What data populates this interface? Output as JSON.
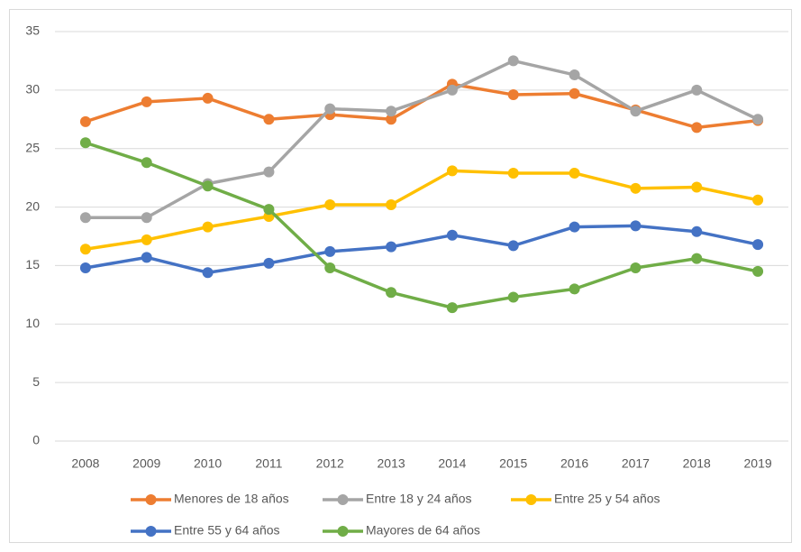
{
  "chart_data": {
    "type": "line",
    "categories": [
      "2008",
      "2009",
      "2010",
      "2011",
      "2012",
      "2013",
      "2014",
      "2015",
      "2016",
      "2017",
      "2018",
      "2019"
    ],
    "series": [
      {
        "name": "Menores de 18 años",
        "color": "#ed7d31",
        "values": [
          27.3,
          29.0,
          29.3,
          27.5,
          27.9,
          27.5,
          30.5,
          29.6,
          29.7,
          28.3,
          26.8,
          27.4
        ]
      },
      {
        "name": "Entre 18 y 24 años",
        "color": "#a5a5a5",
        "values": [
          19.1,
          19.1,
          22.0,
          23.0,
          28.4,
          28.2,
          30.0,
          32.5,
          31.3,
          28.2,
          30.0,
          27.5
        ]
      },
      {
        "name": "Entre 25 y 54 años",
        "color": "#ffc000",
        "values": [
          16.4,
          17.2,
          18.3,
          19.2,
          20.2,
          20.2,
          23.1,
          22.9,
          22.9,
          21.6,
          21.7,
          20.6
        ]
      },
      {
        "name": "Entre 55 y 64 años",
        "color": "#4472c4",
        "values": [
          14.8,
          15.7,
          14.4,
          15.2,
          16.2,
          16.6,
          17.6,
          16.7,
          18.3,
          18.4,
          17.9,
          16.8
        ]
      },
      {
        "name": "Mayores de 64 años",
        "color": "#70ad47",
        "values": [
          25.5,
          23.8,
          21.8,
          19.8,
          14.8,
          12.7,
          11.4,
          12.3,
          13.0,
          14.8,
          15.6,
          14.5
        ]
      }
    ],
    "ylim": [
      0,
      35
    ],
    "yticks": [
      0,
      5,
      10,
      15,
      20,
      25,
      30,
      35
    ],
    "grid": true,
    "legend": "bottom"
  }
}
